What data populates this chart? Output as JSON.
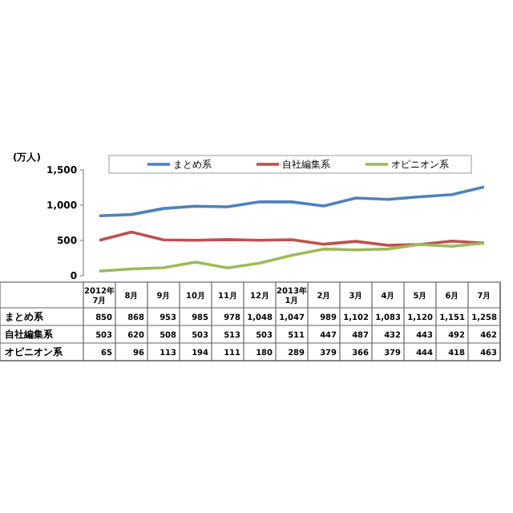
{
  "chart_data": {
    "type": "line",
    "ylabel": "(万人)",
    "categories": [
      "2012年7月",
      "8月",
      "9月",
      "10月",
      "11月",
      "12月",
      "2013年1月",
      "2月",
      "3月",
      "4月",
      "5月",
      "6月",
      "7月"
    ],
    "series": [
      {
        "name": "まとめ系",
        "color": "#4f81bd",
        "values": [
          850,
          868,
          953,
          985,
          978,
          1048,
          1047,
          989,
          1102,
          1083,
          1120,
          1151,
          1258
        ],
        "value_labels": [
          "850",
          "868",
          "953",
          "985",
          "978",
          "1,048",
          "1,047",
          "989",
          "1,102",
          "1,083",
          "1,120",
          "1,151",
          "1,258"
        ]
      },
      {
        "name": "自社編集系",
        "color": "#c0504d",
        "values": [
          503,
          620,
          508,
          503,
          513,
          503,
          511,
          447,
          487,
          432,
          443,
          492,
          462
        ],
        "value_labels": [
          "503",
          "620",
          "508",
          "503",
          "513",
          "503",
          "511",
          "447",
          "487",
          "432",
          "443",
          "492",
          "462"
        ]
      },
      {
        "name": "オピニオン系",
        "color": "#9bbb59",
        "values": [
          65,
          96,
          113,
          194,
          111,
          180,
          289,
          379,
          366,
          379,
          444,
          418,
          463
        ],
        "value_labels": [
          "65",
          "96",
          "113",
          "194",
          "111",
          "180",
          "289",
          "379",
          "366",
          "379",
          "444",
          "418",
          "463"
        ]
      }
    ],
    "ylim": [
      0,
      1500
    ],
    "yticks": [
      0,
      500,
      {
        "value": 1000,
        "label": "1,000"
      },
      {
        "value": 1500,
        "label": "1,500"
      }
    ],
    "legend": "top",
    "grid": false,
    "marker": "none",
    "line_style": "solid"
  }
}
